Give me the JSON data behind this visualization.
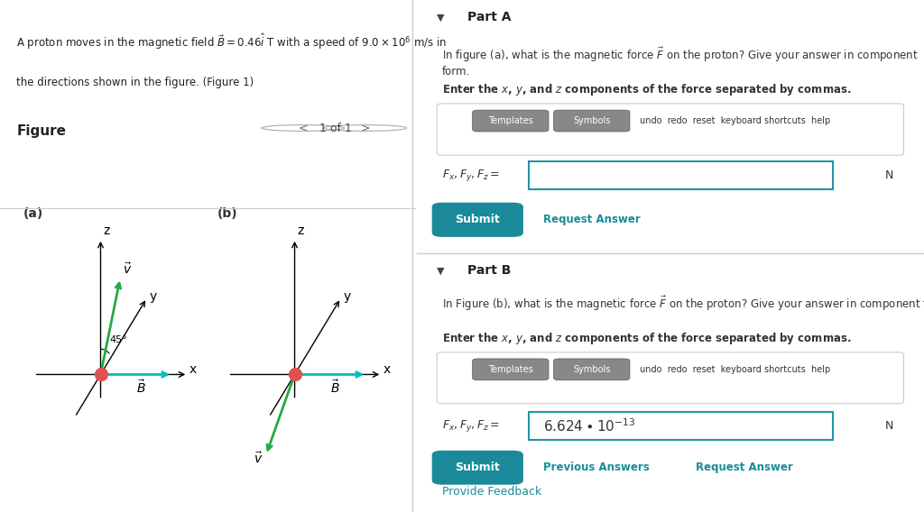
{
  "bg_color": "#ffffff",
  "left_panel_bg": "#e8f4f8",
  "right_panel_bg": "#f5f5f5",
  "divider_color": "#cccccc",
  "teal_color": "#2196A6",
  "problem_text_line1": "A proton moves in the magnetic field $\\vec{B} = 0.46\\hat{i}$ T with a speed of $9.0 \\times 10^{6}$ m/s in",
  "problem_text_line2": "the directions shown in the figure. (Figure 1)",
  "figure_label": "Figure",
  "nav_text": "1 of 1",
  "part_a_label": "Part A",
  "part_a_question": "In figure (a), what is the magnetic force $\\vec{F}$ on the proton? Give your answer in component form.",
  "part_a_bold": "Enter the $x$, $y$, and $z$ components of the force separated by commas.",
  "part_a_field_label": "$F_x, F_y, F_z =$",
  "part_a_unit": "N",
  "part_b_label": "Part B",
  "part_b_question": "In Figure (b), what is the magnetic force $\\vec{F}$ on the proton? Give your answer in component form.",
  "part_b_bold": "Enter the $x$, $y$, and $z$ components of the force separated by commas.",
  "part_b_field_label": "$F_x, F_y, F_z =$",
  "part_b_answer": "$6.624 \\bullet 10^{-13}$",
  "part_b_unit": "N",
  "submit_color": "#1a8a9a",
  "submit_text_color": "#ffffff",
  "link_color": "#1a8a9a",
  "toolbar_bg": "#888888",
  "input_border_color": "#2196A6",
  "fig_a_label": "(a)",
  "fig_b_label": "(b)",
  "angle_label": "45°"
}
